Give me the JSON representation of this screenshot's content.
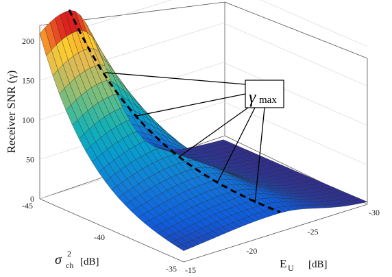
{
  "chart_data": {
    "type": "surface",
    "zlabel": "Receiver SNR (γ)",
    "xlabel_var": "E",
    "xlabel_sub": "U",
    "xlabel_unit": "[dB]",
    "ylabel_var": "σ",
    "ylabel_sup": "2",
    "ylabel_sub": "ch",
    "ylabel_unit": "[dB]",
    "x_axis": {
      "name": "E_U",
      "range": [
        -30,
        -15
      ],
      "ticks": [
        "-15",
        "-20",
        "-25",
        "-30"
      ]
    },
    "y_axis": {
      "name": "sigma_ch^2",
      "range": [
        -45,
        -35
      ],
      "ticks": [
        "-45",
        "-40",
        "-35"
      ]
    },
    "z_axis": {
      "range": [
        0,
        220
      ],
      "ticks": [
        "0",
        "50",
        "100",
        "150",
        "200"
      ]
    },
    "annotation": {
      "text_var": "γ",
      "text_sub": "max",
      "arrows": 5
    },
    "surface_peak": {
      "E_U": -17.4,
      "sigma_ch2": -45,
      "snr": 215
    },
    "max_ridge_line": "dashed",
    "colormap": "parula",
    "grid": true
  }
}
